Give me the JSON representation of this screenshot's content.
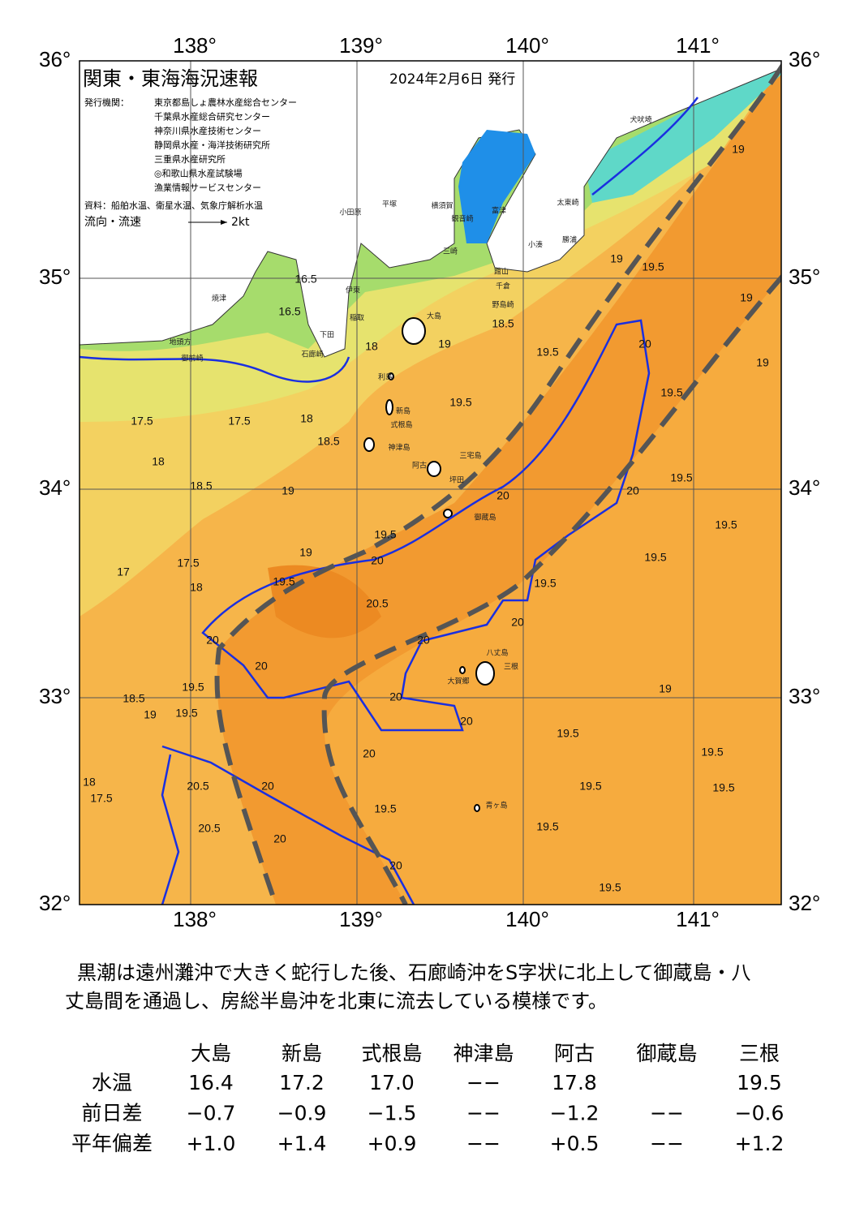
{
  "header": {
    "title": "関東・東海海況速報",
    "date": "2024年2月6日 発行",
    "issuer_label": "発行機関：",
    "issuers": [
      "東京都島しょ農林水産総合センター",
      "千葉県水産総合研究センター",
      "神奈川県水産技術センター",
      "静岡県水産・海洋技術研究所",
      "三重県水産研究所",
      "◎和歌山県水産試験場",
      "漁業情報サービスセンター"
    ],
    "source": "資料：船舶水温、衛星水温、気象庁解析水温",
    "legend": "流向・流速",
    "legend_speed": "2kt"
  },
  "axes": {
    "lon_labels": [
      "138°",
      "139°",
      "140°",
      "141°"
    ],
    "lat_labels": [
      "36°",
      "35°",
      "34°",
      "33°",
      "32°"
    ]
  },
  "places": [
    "犬吠埼",
    "太東崎",
    "勝浦",
    "小湊",
    "野島崎",
    "千倉",
    "館山",
    "富津",
    "観音崎",
    "横須賀",
    "平塚",
    "小田原",
    "三崎",
    "伊東",
    "稲取",
    "下田",
    "石廊崎",
    "御前崎",
    "地頭方",
    "焼津",
    "大島",
    "利島",
    "新島",
    "式根島",
    "神津島",
    "三宅島",
    "阿古",
    "坪田",
    "御蔵島",
    "八丈島",
    "三根",
    "大賀郷",
    "青ヶ島"
  ],
  "contours": [
    "19",
    "19.5",
    "19.5",
    "20",
    "18.5",
    "19.5",
    "19",
    "19.5",
    "19.5",
    "19.5",
    "20",
    "20",
    "19.5",
    "20",
    "20.5",
    "19",
    "19.5",
    "19.5",
    "20",
    "20",
    "20",
    "20",
    "19.5",
    "19.5",
    "18.5",
    "19",
    "17.5",
    "18",
    "20.5",
    "20.5",
    "20",
    "19.5",
    "19.5",
    "19.5",
    "19.5",
    "19.5",
    "19.5",
    "19.5",
    "17.5",
    "17.5",
    "18",
    "18.5",
    "17",
    "17.5",
    "18",
    "16.5",
    "16.5",
    "18",
    "18",
    "18.5",
    "19",
    "20",
    "20",
    "20",
    "20",
    "20",
    "19",
    "19",
    "19",
    "19",
    "19.5"
  ],
  "description": [
    "黒潮は遠州灘沖で大きく蛇行した後、石廊崎沖をS字状に北上して御蔵島・八",
    "丈島間を通過し、房総半島沖を北東に流去している模様です。"
  ],
  "table": {
    "columns": [
      "大島",
      "新島",
      "式根島",
      "神津島",
      "阿古",
      "御蔵島",
      "三根"
    ],
    "rows": [
      {
        "label": "水温",
        "cells": [
          "16.4",
          "17.2",
          "17.0",
          "−−",
          "17.8",
          null,
          "19.5"
        ]
      },
      {
        "label": "前日差",
        "cells": [
          "−0.7",
          "−0.9",
          "−1.5",
          "−−",
          "−1.2",
          "−−",
          "−0.6"
        ]
      },
      {
        "label": "平年偏差",
        "cells": [
          "+1.0",
          "+1.4",
          "+0.9",
          "−−",
          "+0.5",
          "−−",
          "+1.2"
        ]
      }
    ]
  }
}
